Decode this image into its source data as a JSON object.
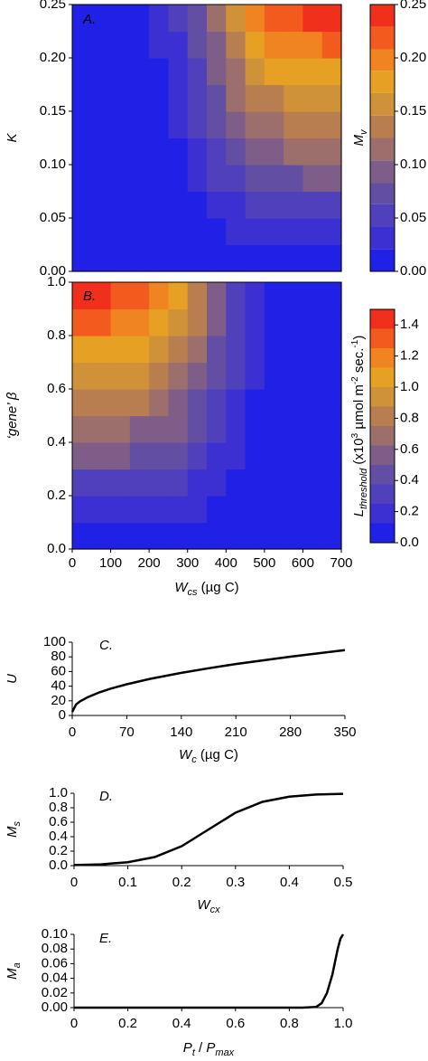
{
  "chart_data": [
    {
      "type": "contour",
      "panel_label": "A.",
      "ylabel": [
        {
          "text": "K",
          "style": "italic"
        }
      ],
      "x": [
        25,
        75,
        125,
        175,
        225,
        275,
        325,
        375,
        425,
        475,
        525,
        575,
        625,
        675
      ],
      "y": [
        0.0125,
        0.0375,
        0.0625,
        0.0875,
        0.1125,
        0.1375,
        0.1625,
        0.1875,
        0.2125,
        0.2375
      ],
      "z": [
        [
          0,
          0,
          0,
          0.001,
          0.001,
          0.002,
          0.004,
          0.006,
          0.008,
          0.01,
          0.011,
          0.012,
          0.012,
          0.012
        ],
        [
          0,
          0,
          0.001,
          0.002,
          0.004,
          0.007,
          0.012,
          0.018,
          0.025,
          0.03,
          0.033,
          0.035,
          0.036,
          0.037
        ],
        [
          0,
          0.001,
          0.002,
          0.003,
          0.006,
          0.011,
          0.02,
          0.03,
          0.041,
          0.05,
          0.056,
          0.059,
          0.061,
          0.062
        ],
        [
          0.001,
          0.001,
          0.002,
          0.004,
          0.009,
          0.016,
          0.027,
          0.042,
          0.057,
          0.07,
          0.078,
          0.082,
          0.085,
          0.086
        ],
        [
          0.001,
          0.001,
          0.003,
          0.006,
          0.011,
          0.02,
          0.035,
          0.054,
          0.074,
          0.09,
          0.1,
          0.106,
          0.109,
          0.111
        ],
        [
          0.001,
          0.002,
          0.003,
          0.007,
          0.014,
          0.025,
          0.043,
          0.066,
          0.09,
          0.109,
          0.122,
          0.13,
          0.134,
          0.135
        ],
        [
          0.001,
          0.002,
          0.004,
          0.008,
          0.016,
          0.03,
          0.051,
          0.078,
          0.106,
          0.129,
          0.144,
          0.153,
          0.158,
          0.16
        ],
        [
          0.001,
          0.002,
          0.005,
          0.01,
          0.019,
          0.034,
          0.059,
          0.091,
          0.123,
          0.149,
          0.167,
          0.177,
          0.182,
          0.185
        ],
        [
          0.001,
          0.003,
          0.005,
          0.011,
          0.021,
          0.039,
          0.067,
          0.103,
          0.139,
          0.169,
          0.189,
          0.2,
          0.206,
          0.209
        ],
        [
          0.001,
          0.003,
          0.006,
          0.012,
          0.024,
          0.043,
          0.074,
          0.115,
          0.156,
          0.189,
          0.211,
          0.224,
          0.231,
          0.234
        ]
      ],
      "xlim": [
        0,
        700
      ],
      "ylim": [
        0,
        0.25
      ],
      "yticks": [
        {
          "value": 0,
          "label": "0.00"
        },
        {
          "value": 0.05,
          "label": "0.05"
        },
        {
          "value": 0.1,
          "label": "0.10"
        },
        {
          "value": 0.15,
          "label": "0.15"
        },
        {
          "value": 0.2,
          "label": "0.20"
        },
        {
          "value": 0.25,
          "label": "0.25"
        }
      ],
      "levels": [
        0,
        0.021,
        0.042,
        0.063,
        0.083,
        0.104,
        0.125,
        0.146,
        0.167,
        0.188,
        0.208,
        0.229,
        0.25
      ],
      "colors": [
        "#2020e6",
        "#3c30d2",
        "#5040bc",
        "#624ea2",
        "#7e5e88",
        "#9c6e6c",
        "#b87e50",
        "#d09238",
        "#e6a024",
        "#f08420",
        "#f25a1e",
        "#f0301c"
      ],
      "colorbar": {
        "label": [
          {
            "text": "M",
            "style": "italic"
          },
          {
            "text": "v",
            "style": "sub"
          }
        ],
        "lim": [
          0,
          0.25
        ],
        "ticks": [
          {
            "value": 0,
            "label": "0.00"
          },
          {
            "value": 0.05,
            "label": "0.05"
          },
          {
            "value": 0.1,
            "label": "0.10"
          },
          {
            "value": 0.15,
            "label": "0.15"
          },
          {
            "value": 0.2,
            "label": "0.20"
          },
          {
            "value": 0.25,
            "label": "0.25"
          }
        ]
      }
    },
    {
      "type": "contour",
      "panel_label": "B.",
      "ylabel": [
        {
          "text": "‘gene’ β",
          "style": "italic"
        }
      ],
      "xlabel": [
        {
          "text": "W",
          "style": "italic"
        },
        {
          "text": "cs",
          "style": "sub"
        },
        {
          "text": " (µg C)",
          "style": "normal"
        }
      ],
      "x": [
        25,
        75,
        125,
        175,
        225,
        275,
        325,
        375,
        425,
        475,
        525,
        575,
        625,
        675
      ],
      "y": [
        0.05,
        0.15,
        0.25,
        0.35,
        0.45,
        0.55,
        0.65,
        0.75,
        0.85,
        0.95
      ],
      "z": [
        [
          0.07,
          0.07,
          0.07,
          0.07,
          0.06,
          0.06,
          0.04,
          0.03,
          0.02,
          0.01,
          0.01,
          0,
          0,
          0
        ],
        [
          0.22,
          0.22,
          0.22,
          0.21,
          0.19,
          0.17,
          0.13,
          0.09,
          0.06,
          0.03,
          0.02,
          0.01,
          0,
          0
        ],
        [
          0.37,
          0.37,
          0.36,
          0.35,
          0.32,
          0.28,
          0.22,
          0.15,
          0.1,
          0.05,
          0.03,
          0.01,
          0.01,
          0
        ],
        [
          0.52,
          0.51,
          0.5,
          0.49,
          0.45,
          0.39,
          0.31,
          0.22,
          0.13,
          0.07,
          0.04,
          0.02,
          0.01,
          0
        ],
        [
          0.67,
          0.66,
          0.65,
          0.62,
          0.58,
          0.5,
          0.4,
          0.28,
          0.17,
          0.1,
          0.05,
          0.03,
          0.01,
          0.01
        ],
        [
          0.82,
          0.81,
          0.79,
          0.76,
          0.71,
          0.61,
          0.49,
          0.34,
          0.21,
          0.12,
          0.06,
          0.03,
          0.02,
          0.01
        ],
        [
          0.97,
          0.96,
          0.94,
          0.9,
          0.84,
          0.73,
          0.57,
          0.4,
          0.25,
          0.14,
          0.07,
          0.04,
          0.02,
          0.01
        ],
        [
          1.11,
          1.1,
          1.08,
          1.04,
          0.96,
          0.84,
          0.66,
          0.46,
          0.29,
          0.16,
          0.09,
          0.04,
          0.02,
          0.01
        ],
        [
          1.26,
          1.25,
          1.23,
          1.18,
          1.09,
          0.95,
          0.75,
          0.53,
          0.33,
          0.18,
          0.1,
          0.05,
          0.02,
          0.01
        ],
        [
          1.41,
          1.4,
          1.37,
          1.32,
          1.22,
          1.06,
          0.84,
          0.59,
          0.36,
          0.2,
          0.11,
          0.06,
          0.03,
          0.01
        ]
      ],
      "xlim": [
        0,
        700
      ],
      "ylim": [
        0,
        1
      ],
      "xticks": [
        0,
        100,
        200,
        300,
        400,
        500,
        600,
        700
      ],
      "yticks": [
        {
          "value": 0,
          "label": "0.0"
        },
        0.2,
        0.4,
        0.6,
        0.8,
        {
          "value": 1,
          "label": "1.0"
        }
      ],
      "levels": [
        0,
        0.125,
        0.25,
        0.375,
        0.5,
        0.625,
        0.75,
        0.875,
        1,
        1.125,
        1.25,
        1.375,
        1.5
      ],
      "colors": [
        "#2020e6",
        "#3c30d2",
        "#5040bc",
        "#624ea2",
        "#7e5e88",
        "#9c6e6c",
        "#b87e50",
        "#d09238",
        "#e6a024",
        "#f08420",
        "#f25a1e",
        "#f0301c"
      ],
      "colorbar": {
        "label": [
          {
            "text": "L",
            "style": "italic"
          },
          {
            "text": "threshold",
            "style": "sub"
          },
          {
            "text": " (x10",
            "style": "normal"
          },
          {
            "text": "3",
            "style": "sup"
          },
          {
            "text": " µmol m",
            "style": "normal"
          },
          {
            "text": "-2",
            "style": "sup"
          },
          {
            "text": " sec.",
            "style": "normal"
          },
          {
            "text": "-1",
            "style": "sup"
          },
          {
            "text": ")",
            "style": "normal"
          }
        ],
        "lim": [
          0,
          1.5
        ],
        "ticks": [
          {
            "value": 0,
            "label": "0.0"
          },
          0.2,
          0.4,
          0.6,
          0.8,
          {
            "value": 1,
            "label": "1.0"
          },
          1.2,
          1.4
        ]
      }
    },
    {
      "type": "line",
      "panel_label": "C.",
      "ylabel": [
        {
          "text": "U",
          "style": "italic"
        }
      ],
      "xlabel": [
        {
          "text": "W",
          "style": "italic"
        },
        {
          "text": "c",
          "style": "sub"
        },
        {
          "text": " (µg C)",
          "style": "normal"
        }
      ],
      "x": [
        0,
        5,
        10,
        20,
        35,
        50,
        70,
        100,
        140,
        175,
        210,
        280,
        350
      ],
      "values": [
        5,
        15.1,
        19.2,
        25.1,
        31.6,
        36.8,
        42.6,
        50,
        58.2,
        64.5,
        70.2,
        80.3,
        89.2
      ],
      "color": "#000000",
      "xlim": [
        0,
        350
      ],
      "ylim": [
        0,
        100
      ],
      "xticks": [
        0,
        70,
        140,
        210,
        280,
        350
      ],
      "yticks": [
        0,
        20,
        40,
        60,
        80,
        100
      ]
    },
    {
      "type": "line",
      "panel_label": "D.",
      "ylabel": [
        {
          "text": "M",
          "style": "italic"
        },
        {
          "text": "s",
          "style": "sub"
        }
      ],
      "xlabel": [
        {
          "text": "W",
          "style": "italic"
        },
        {
          "text": "cx",
          "style": "sub"
        }
      ],
      "x": [
        0,
        0.05,
        0.1,
        0.15,
        0.2,
        0.25,
        0.3,
        0.35,
        0.4,
        0.45,
        0.5
      ],
      "values": [
        0.007,
        0.018,
        0.047,
        0.119,
        0.269,
        0.5,
        0.731,
        0.881,
        0.953,
        0.982,
        0.993
      ],
      "color": "#000000",
      "xlim": [
        0,
        0.5
      ],
      "ylim": [
        0,
        1
      ],
      "xticks": [
        0,
        0.1,
        0.2,
        0.3,
        0.4,
        0.5
      ],
      "yticks": [
        {
          "value": 0,
          "label": "0.0"
        },
        0.2,
        0.4,
        0.6,
        0.8,
        {
          "value": 1,
          "label": "1.0"
        }
      ]
    },
    {
      "type": "line",
      "panel_label": "E.",
      "ylabel": [
        {
          "text": "M",
          "style": "italic"
        },
        {
          "text": "a",
          "style": "sub"
        }
      ],
      "xlabel": [
        {
          "text": "P",
          "style": "italic"
        },
        {
          "text": "t",
          "style": "sub"
        },
        {
          "text": " / ",
          "style": "normal"
        },
        {
          "text": "P",
          "style": "italic"
        },
        {
          "text": "max",
          "style": "sub"
        }
      ],
      "x": [
        0,
        0.85,
        0.9,
        0.92,
        0.94,
        0.96,
        0.98,
        0.99,
        1
      ],
      "values": [
        0,
        0,
        0.001,
        0.006,
        0.02,
        0.045,
        0.08,
        0.094,
        0.1
      ],
      "color": "#000000",
      "xlim": [
        0,
        1
      ],
      "ylim": [
        0,
        0.1
      ],
      "xticks": [
        0,
        0.2,
        0.4,
        0.6,
        0.8,
        {
          "value": 1,
          "label": "1.0"
        }
      ],
      "yticks": [
        {
          "value": 0,
          "label": "0.00"
        },
        {
          "value": 0.02,
          "label": "0.02"
        },
        {
          "value": 0.04,
          "label": "0.04"
        },
        {
          "value": 0.06,
          "label": "0.06"
        },
        {
          "value": 0.08,
          "label": "0.08"
        },
        {
          "value": 0.1,
          "label": "0.10"
        }
      ]
    }
  ]
}
